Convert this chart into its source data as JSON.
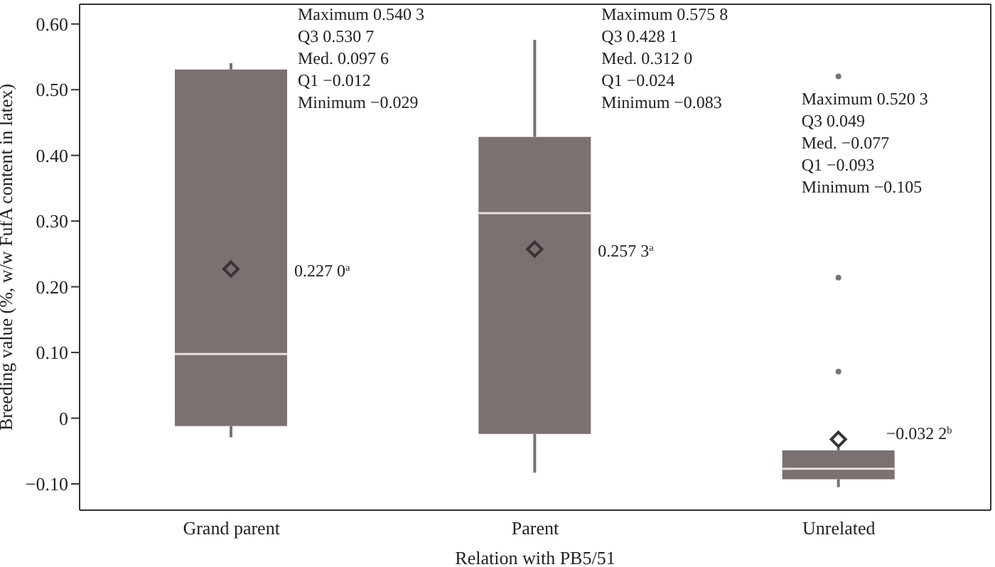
{
  "chart_data": {
    "type": "box",
    "xlabel": "Relation with PB5/51",
    "ylabel": "Breeding value (%, w/w FufA content in latex)",
    "categories": [
      "Grand parent",
      "Parent",
      "Unrelated"
    ],
    "ylim": [
      -0.14,
      0.63
    ],
    "yticks": [
      {
        "value": -0.1,
        "label": "−0.10"
      },
      {
        "value": 0,
        "label": "0"
      },
      {
        "value": 0.1,
        "label": "0.10"
      },
      {
        "value": 0.2,
        "label": "0.20"
      },
      {
        "value": 0.3,
        "label": "0.30"
      },
      {
        "value": 0.4,
        "label": "0.40"
      },
      {
        "value": 0.5,
        "label": "0.50"
      },
      {
        "value": 0.6,
        "label": "0.60"
      }
    ],
    "marker": "diamond",
    "series": [
      {
        "color": "#7a7170",
        "boxes": [
          {
            "low": -0.029,
            "q1": -0.012,
            "median": 0.0976,
            "q3": 0.5307,
            "high": 0.5403,
            "mean": 0.227
          },
          {
            "low": -0.083,
            "q1": -0.024,
            "median": 0.312,
            "q3": 0.4281,
            "high": 0.5758,
            "mean": 0.2573
          },
          {
            "low": -0.105,
            "q1": -0.093,
            "median": -0.077,
            "q3": -0.049,
            "high": -0.045,
            "mean": -0.0322,
            "outliers": [
              0.5203,
              0.214,
              0.071
            ]
          }
        ]
      }
    ],
    "annotations": [
      "Maximum 0.540 3\nQ3 0.530 7\nMed. 0.097 6\nQ1 −0.012\nMinimum −0.029",
      "Maximum 0.575 8\nQ3 0.428 1\nMed. 0.312 0\nQ1 −0.024\nMinimum −0.083",
      "Maximum 0.520 3\nQ3 0.049\nMed. −0.077\nQ1 −0.093\nMinimum −0.105",
      "0.227 0$^{a}$",
      "0.257 3$^{a}$",
      "−0.032 2$^{b}$"
    ]
  }
}
